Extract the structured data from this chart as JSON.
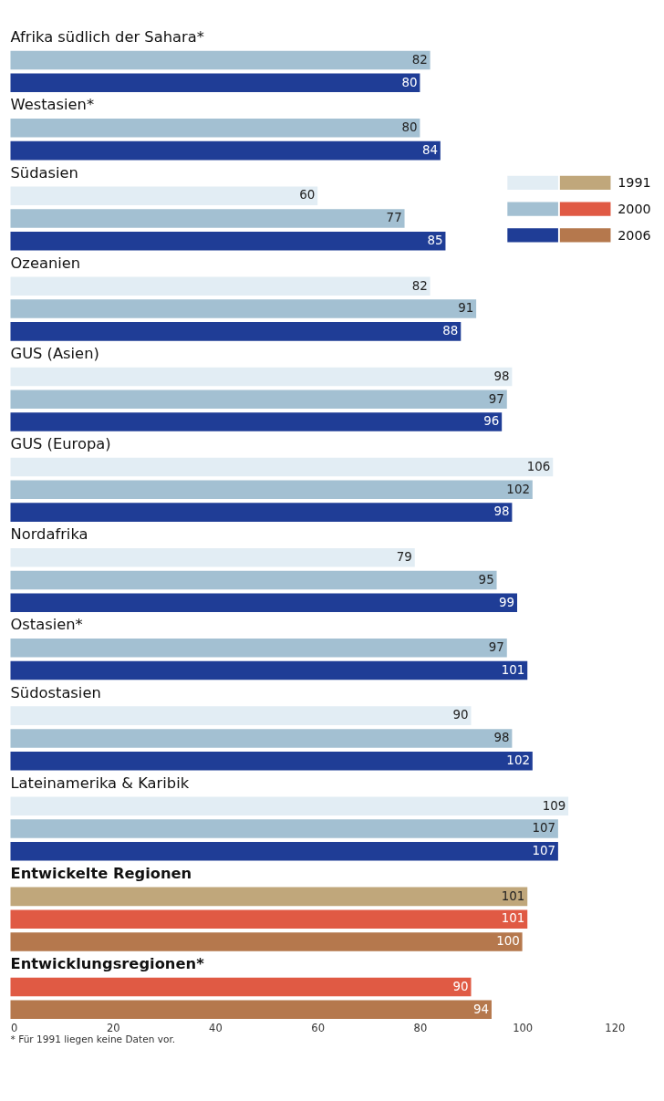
{
  "chart_data": {
    "type": "bar",
    "orientation": "horizontal",
    "categories": [
      "Afrika südlich der Sahara*",
      "Westasien*",
      "Südasien",
      "Ozeanien",
      "GUS (Asien)",
      "GUS (Europa)",
      "Nordafrika",
      "Ostasien*",
      "Südostasien",
      "Lateinamerika & Karibik",
      "Entwickelte Regionen",
      "Entwicklungsregionen*"
    ],
    "series": [
      {
        "name": "1991",
        "color": "#e2edf4",
        "colors": [
          "#e2edf4",
          "#e2edf4",
          "#e2edf4",
          "#e2edf4",
          "#e2edf4",
          "#e2edf4",
          "#e2edf4",
          "#e2edf4",
          "#e2edf4",
          "#e2edf4",
          "#c0a77b",
          "#c0a77b"
        ],
        "values": [
          null,
          null,
          60,
          82,
          98,
          106,
          79,
          null,
          90,
          109,
          101,
          null
        ]
      },
      {
        "name": "2000",
        "color": "#a3c0d2",
        "colors": [
          "#a3c0d2",
          "#a3c0d2",
          "#a3c0d2",
          "#a3c0d2",
          "#a3c0d2",
          "#a3c0d2",
          "#a3c0d2",
          "#a3c0d2",
          "#a3c0d2",
          "#a3c0d2",
          "#e05a44",
          "#e05a44"
        ],
        "values": [
          82,
          80,
          77,
          91,
          97,
          102,
          95,
          97,
          98,
          107,
          101,
          90
        ]
      },
      {
        "name": "2006",
        "color": "#1f3d96",
        "colors": [
          "#1f3d96",
          "#1f3d96",
          "#1f3d96",
          "#1f3d96",
          "#1f3d96",
          "#1f3d96",
          "#1f3d96",
          "#1f3d96",
          "#1f3d96",
          "#1f3d96",
          "#b5784d",
          "#b5784d"
        ],
        "values": [
          80,
          84,
          85,
          88,
          96,
          98,
          99,
          101,
          102,
          107,
          100,
          94
        ]
      }
    ],
    "xlim": [
      0,
      120
    ],
    "xticks": [
      0,
      20,
      40,
      60,
      80,
      100,
      120
    ],
    "data_labels": true,
    "grid": false,
    "legend": "top right",
    "annotations": [
      "* Für 1991 liegen keine Daten vor."
    ]
  }
}
